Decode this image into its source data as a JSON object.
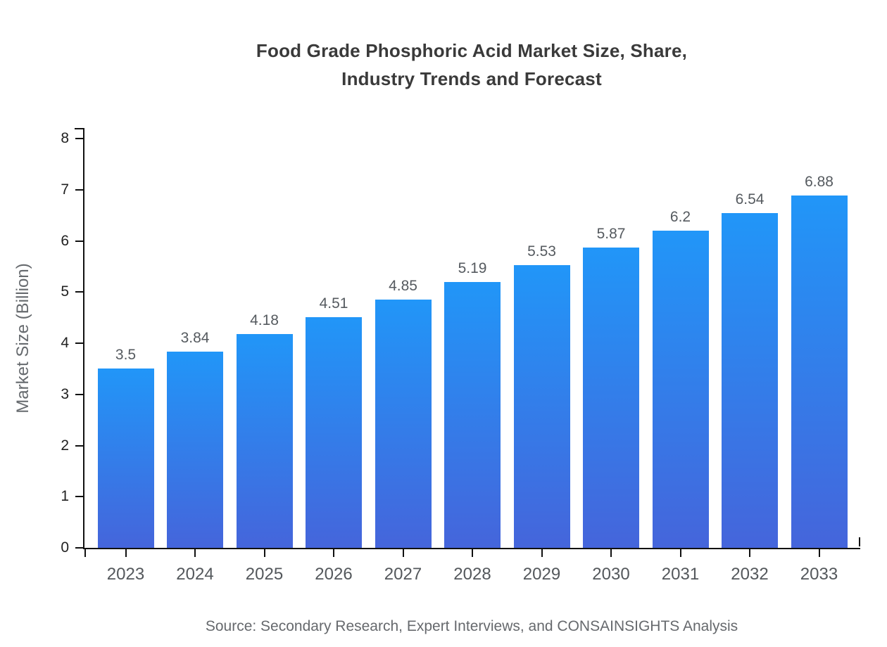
{
  "title": "Food Grade Phosphoric Acid Market Size, Share,\nIndustry Trends and Forecast",
  "source": "Source: Secondary Research, Expert Interviews, and CONSAINSIGHTS Analysis",
  "colors": {
    "bar_gradient_top": "#2196f8",
    "bar_gradient_bottom": "#4565db",
    "axis": "#111111",
    "title_text": "#3a3a3a",
    "label_text": "#555a5f",
    "background": "#ffffff"
  },
  "chart_data": {
    "type": "bar",
    "title": "Food Grade Phosphoric Acid Market Size, Share, Industry Trends and Forecast",
    "categories": [
      "2023",
      "2024",
      "2025",
      "2026",
      "2027",
      "2028",
      "2029",
      "2030",
      "2031",
      "2032",
      "2033"
    ],
    "values": [
      3.5,
      3.84,
      4.18,
      4.51,
      4.85,
      5.19,
      5.53,
      5.87,
      6.2,
      6.54,
      6.88
    ],
    "value_labels": [
      "3.5",
      "3.84",
      "4.18",
      "4.51",
      "4.85",
      "5.19",
      "5.53",
      "5.87",
      "6.2",
      "6.54",
      "6.88"
    ],
    "xlabel": "",
    "ylabel": "Market Size (Billion)",
    "ylim": [
      0,
      8
    ],
    "yticks": [
      0,
      1,
      2,
      3,
      4,
      5,
      6,
      7,
      8
    ],
    "grid": false,
    "legend": false,
    "bar_color_gradient": [
      "#2196f8",
      "#4565db"
    ]
  }
}
